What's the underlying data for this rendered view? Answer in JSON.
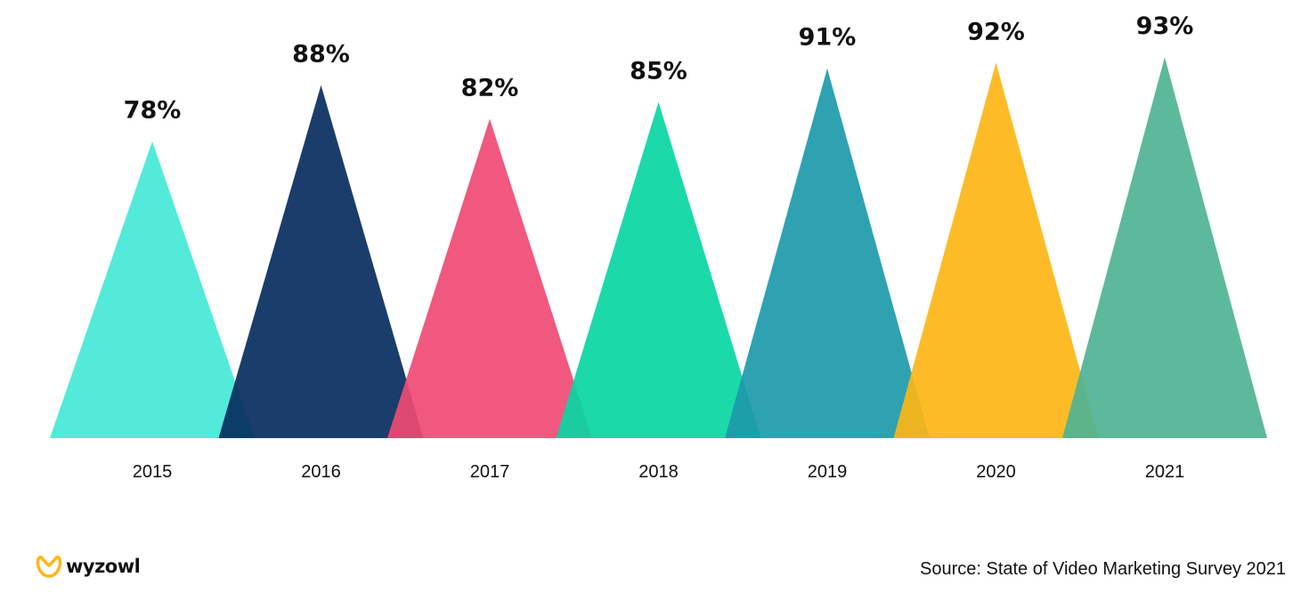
{
  "chart_data": {
    "type": "bar",
    "categories": [
      "2015",
      "2016",
      "2017",
      "2018",
      "2019",
      "2020",
      "2021"
    ],
    "values": [
      78,
      88,
      82,
      85,
      91,
      92,
      93
    ],
    "value_labels": [
      "78%",
      "88%",
      "82%",
      "85%",
      "91%",
      "92%",
      "93%"
    ],
    "colors": [
      "#44E8D6",
      "#072D5E",
      "#EF4A75",
      "#08D6A2",
      "#1D9AAA",
      "#FEB516",
      "#4FB392"
    ],
    "ylim": [
      0,
      100
    ],
    "grid": false,
    "legend": "none",
    "title": "",
    "xlabel": "",
    "ylabel": ""
  },
  "footer": {
    "brand": "wyzowl",
    "brand_icon": "wyzowl-logo-icon",
    "source": "Source: State of Video Marketing Survey 2021"
  }
}
